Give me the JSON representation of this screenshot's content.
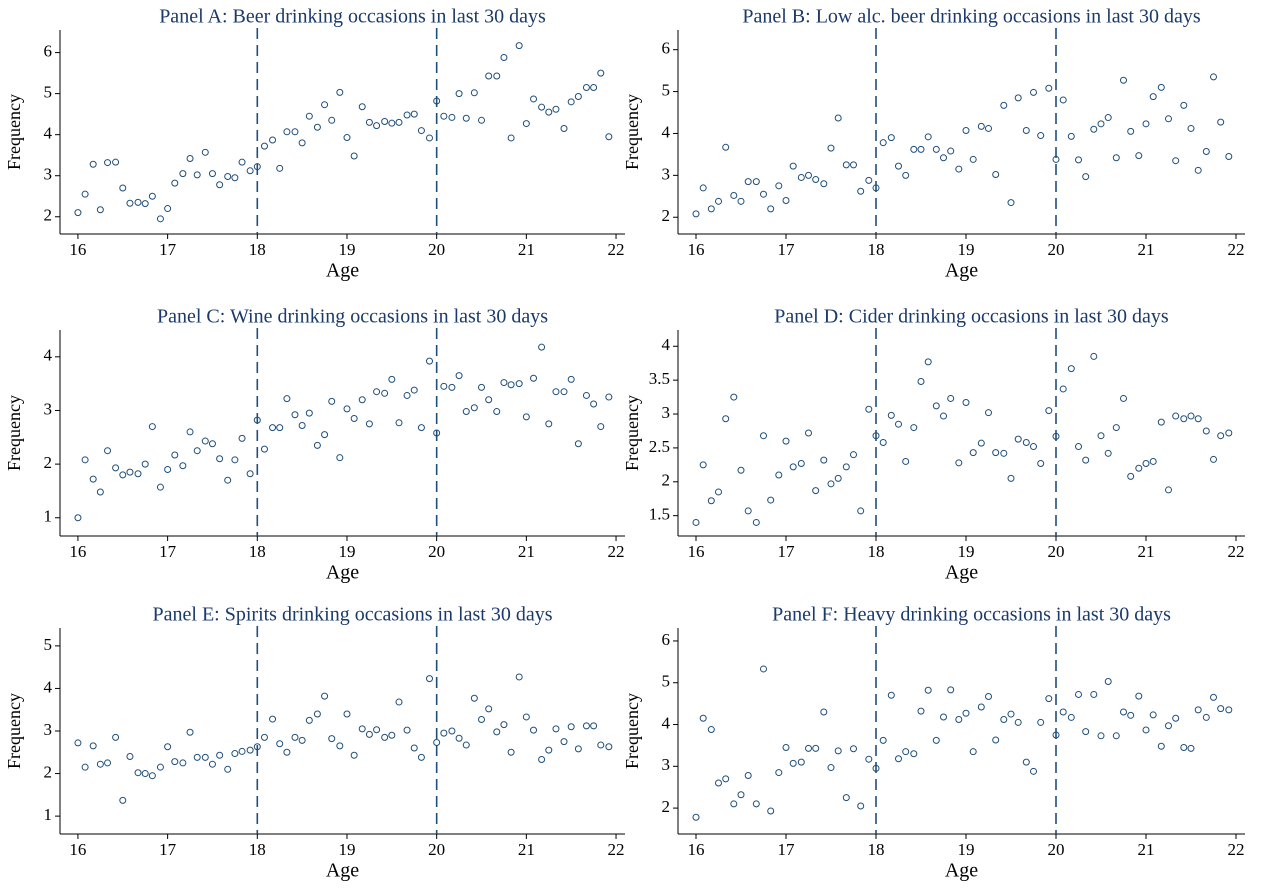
{
  "chart_data": [
    {
      "type": "scatter",
      "title": "Panel A: Beer drinking occasions in last 30 days",
      "x_label": "Age",
      "y_label": "Frequency",
      "color": "#1f4e79",
      "x": [
        16,
        16.08,
        16.17,
        16.25,
        16.33,
        16.42,
        16.5,
        16.58,
        16.67,
        16.75,
        16.83,
        16.92,
        17,
        17.08,
        17.17,
        17.25,
        17.33,
        17.42,
        17.5,
        17.58,
        17.67,
        17.75,
        17.83,
        17.92,
        18,
        18.08,
        18.17,
        18.25,
        18.33,
        18.42,
        18.5,
        18.58,
        18.67,
        18.75,
        18.83,
        18.92,
        19,
        19.08,
        19.17,
        19.25,
        19.33,
        19.42,
        19.5,
        19.58,
        19.67,
        19.75,
        19.83,
        19.92,
        20,
        20.08,
        20.17,
        20.25,
        20.33,
        20.42,
        20.5,
        20.58,
        20.67,
        20.75,
        20.83,
        20.92,
        21,
        21.08,
        21.17,
        21.25,
        21.33,
        21.42,
        21.5,
        21.58,
        21.67,
        21.75,
        21.83,
        21.92
      ],
      "values": [
        2.1,
        2.55,
        3.28,
        2.17,
        3.32,
        3.33,
        2.7,
        2.33,
        2.35,
        2.32,
        2.5,
        1.95,
        2.2,
        2.82,
        3.05,
        3.42,
        3.02,
        3.57,
        3.05,
        2.78,
        2.98,
        2.95,
        3.33,
        3.12,
        3.22,
        3.72,
        3.87,
        3.18,
        4.07,
        4.07,
        3.8,
        4.45,
        4.18,
        4.73,
        4.35,
        5.03,
        3.93,
        3.48,
        4.68,
        4.3,
        4.22,
        4.32,
        4.28,
        4.3,
        4.48,
        4.5,
        4.1,
        3.92,
        4.82,
        4.45,
        4.42,
        5,
        4.4,
        5.02,
        4.35,
        5.43,
        5.43,
        5.88,
        3.92,
        6.17,
        4.27,
        4.87,
        4.67,
        4.55,
        4.62,
        4.15,
        4.8,
        4.93,
        5.15,
        5.15,
        5.5,
        3.95
      ],
      "xlim": [
        15.8,
        22.1
      ],
      "xticks": [
        16,
        17,
        18,
        19,
        20,
        21,
        22
      ],
      "ylim": [
        1.58,
        6.55
      ],
      "yticks": [
        2,
        3,
        4,
        5,
        6
      ],
      "vlines": [
        18,
        20
      ]
    },
    {
      "type": "scatter",
      "title": "Panel B: Low alc. beer drinking occasions in last 30 days",
      "x_label": "Age",
      "y_label": "Frequency",
      "color": "#1f4e79",
      "x": [
        16,
        16.08,
        16.17,
        16.25,
        16.33,
        16.42,
        16.5,
        16.58,
        16.67,
        16.75,
        16.83,
        16.92,
        17,
        17.08,
        17.17,
        17.25,
        17.33,
        17.42,
        17.5,
        17.58,
        17.67,
        17.75,
        17.83,
        17.92,
        18,
        18.08,
        18.17,
        18.25,
        18.33,
        18.42,
        18.5,
        18.58,
        18.67,
        18.75,
        18.83,
        18.92,
        19,
        19.08,
        19.17,
        19.25,
        19.33,
        19.42,
        19.5,
        19.58,
        19.67,
        19.75,
        19.83,
        19.92,
        20,
        20.08,
        20.17,
        20.25,
        20.33,
        20.42,
        20.5,
        20.58,
        20.67,
        20.75,
        20.83,
        20.92,
        21,
        21.08,
        21.17,
        21.25,
        21.33,
        21.42,
        21.5,
        21.58,
        21.67,
        21.75,
        21.83,
        21.92
      ],
      "values": [
        2.08,
        2.7,
        2.2,
        2.38,
        3.67,
        2.52,
        2.38,
        2.85,
        2.85,
        2.55,
        2.2,
        2.75,
        2.4,
        3.22,
        2.95,
        3,
        2.9,
        2.8,
        3.65,
        4.37,
        3.25,
        3.25,
        2.62,
        2.88,
        2.7,
        3.78,
        3.9,
        3.22,
        3,
        3.62,
        3.62,
        3.92,
        3.62,
        3.42,
        3.58,
        3.15,
        4.07,
        3.38,
        4.17,
        4.12,
        3.02,
        4.67,
        2.35,
        4.85,
        4.07,
        4.98,
        3.95,
        5.08,
        3.38,
        4.8,
        3.93,
        3.37,
        2.97,
        4.1,
        4.23,
        4.38,
        3.42,
        5.27,
        4.05,
        3.47,
        4.23,
        4.88,
        5.1,
        4.35,
        3.35,
        4.67,
        4.12,
        3.12,
        3.57,
        5.35,
        4.27,
        3.45
      ],
      "xlim": [
        15.8,
        22.1
      ],
      "xticks": [
        16,
        17,
        18,
        19,
        20,
        21,
        22
      ],
      "ylim": [
        1.6,
        6.47
      ],
      "yticks": [
        2,
        3,
        4,
        5,
        6
      ],
      "vlines": [
        18,
        20
      ]
    },
    {
      "type": "scatter",
      "title": "Panel C: Wine drinking occasions in last 30 days",
      "x_label": "Age",
      "y_label": "Frequency",
      "color": "#1f4e79",
      "x": [
        16,
        16.08,
        16.17,
        16.25,
        16.33,
        16.42,
        16.5,
        16.58,
        16.67,
        16.75,
        16.83,
        16.92,
        17,
        17.08,
        17.17,
        17.25,
        17.33,
        17.42,
        17.5,
        17.58,
        17.67,
        17.75,
        17.83,
        17.92,
        18,
        18.08,
        18.17,
        18.25,
        18.33,
        18.42,
        18.5,
        18.58,
        18.67,
        18.75,
        18.83,
        18.92,
        19,
        19.08,
        19.17,
        19.25,
        19.33,
        19.42,
        19.5,
        19.58,
        19.67,
        19.75,
        19.83,
        19.92,
        20,
        20.08,
        20.17,
        20.25,
        20.33,
        20.42,
        20.5,
        20.58,
        20.67,
        20.75,
        20.83,
        20.92,
        21,
        21.08,
        21.17,
        21.25,
        21.33,
        21.42,
        21.5,
        21.58,
        21.67,
        21.75,
        21.83,
        21.92
      ],
      "values": [
        1,
        2.08,
        1.72,
        1.48,
        2.25,
        1.93,
        1.8,
        1.85,
        1.82,
        2,
        2.7,
        1.57,
        1.9,
        2.17,
        1.97,
        2.6,
        2.25,
        2.43,
        2.38,
        2.1,
        1.7,
        2.08,
        2.48,
        1.82,
        2.82,
        2.28,
        2.68,
        2.68,
        3.22,
        2.92,
        2.72,
        2.95,
        2.35,
        2.55,
        3.17,
        2.12,
        3.03,
        2.85,
        3.2,
        2.75,
        3.35,
        3.32,
        3.58,
        2.77,
        3.28,
        3.38,
        2.68,
        3.92,
        2.58,
        3.45,
        3.43,
        3.65,
        2.98,
        3.05,
        3.43,
        3.2,
        2.98,
        3.52,
        3.48,
        3.5,
        2.88,
        3.6,
        4.18,
        2.75,
        3.35,
        3.35,
        3.58,
        2.38,
        3.28,
        3.12,
        2.7,
        3.25
      ],
      "xlim": [
        15.8,
        22.1
      ],
      "xticks": [
        16,
        17,
        18,
        19,
        20,
        21,
        22
      ],
      "ylim": [
        0.66,
        4.5
      ],
      "yticks": [
        1,
        2,
        3,
        4
      ],
      "vlines": [
        18,
        20
      ]
    },
    {
      "type": "scatter",
      "title": "Panel D: Cider drinking occasions in last 30 days",
      "x_label": "Age",
      "y_label": "Frequency",
      "color": "#1f4e79",
      "x": [
        16,
        16.08,
        16.17,
        16.25,
        16.33,
        16.42,
        16.5,
        16.58,
        16.67,
        16.75,
        16.83,
        16.92,
        17,
        17.08,
        17.17,
        17.25,
        17.33,
        17.42,
        17.5,
        17.58,
        17.67,
        17.75,
        17.83,
        17.92,
        18,
        18.08,
        18.17,
        18.25,
        18.33,
        18.42,
        18.5,
        18.58,
        18.67,
        18.75,
        18.83,
        18.92,
        19,
        19.08,
        19.17,
        19.25,
        19.33,
        19.42,
        19.5,
        19.58,
        19.67,
        19.75,
        19.83,
        19.92,
        20,
        20.08,
        20.17,
        20.25,
        20.33,
        20.42,
        20.5,
        20.58,
        20.67,
        20.75,
        20.83,
        20.92,
        21,
        21.08,
        21.17,
        21.25,
        21.33,
        21.42,
        21.5,
        21.58,
        21.67,
        21.75,
        21.83,
        21.92
      ],
      "values": [
        1.4,
        2.25,
        1.72,
        1.85,
        2.93,
        3.25,
        2.17,
        1.57,
        1.4,
        2.68,
        1.73,
        2.1,
        2.6,
        2.22,
        2.27,
        2.72,
        1.87,
        2.32,
        1.97,
        2.05,
        2.22,
        2.4,
        1.57,
        3.07,
        2.68,
        2.58,
        2.98,
        2.85,
        2.3,
        2.8,
        3.48,
        3.77,
        3.12,
        2.97,
        3.23,
        2.28,
        3.17,
        2.43,
        2.57,
        3.02,
        2.43,
        2.42,
        2.05,
        2.63,
        2.58,
        2.52,
        2.27,
        3.05,
        2.67,
        3.37,
        3.67,
        2.52,
        2.32,
        3.85,
        2.68,
        2.42,
        2.8,
        3.23,
        2.08,
        2.2,
        2.27,
        2.3,
        2.88,
        1.88,
        2.97,
        2.93,
        2.97,
        2.93,
        2.75,
        2.33,
        2.68,
        2.72
      ],
      "xlim": [
        15.8,
        22.1
      ],
      "xticks": [
        16,
        17,
        18,
        19,
        20,
        21,
        22
      ],
      "ylim": [
        1.2,
        4.24
      ],
      "yticks": [
        1.5,
        2,
        2.5,
        3,
        3.5,
        4
      ],
      "vlines": [
        18,
        20
      ]
    },
    {
      "type": "scatter",
      "title": "Panel E: Spirits drinking occasions in last 30 days",
      "x_label": "Age",
      "y_label": "Frequency",
      "color": "#1f4e79",
      "x": [
        16,
        16.08,
        16.17,
        16.25,
        16.33,
        16.42,
        16.5,
        16.58,
        16.67,
        16.75,
        16.83,
        16.92,
        17,
        17.08,
        17.17,
        17.25,
        17.33,
        17.42,
        17.5,
        17.58,
        17.67,
        17.75,
        17.83,
        17.92,
        18,
        18.08,
        18.17,
        18.25,
        18.33,
        18.42,
        18.5,
        18.58,
        18.67,
        18.75,
        18.83,
        18.92,
        19,
        19.08,
        19.17,
        19.25,
        19.33,
        19.42,
        19.5,
        19.58,
        19.67,
        19.75,
        19.83,
        19.92,
        20,
        20.08,
        20.17,
        20.25,
        20.33,
        20.42,
        20.5,
        20.58,
        20.67,
        20.75,
        20.83,
        20.92,
        21,
        21.08,
        21.17,
        21.25,
        21.33,
        21.42,
        21.5,
        21.58,
        21.67,
        21.75,
        21.83,
        21.92
      ],
      "values": [
        2.72,
        2.15,
        2.65,
        2.22,
        2.25,
        2.85,
        1.37,
        2.4,
        2.02,
        2,
        1.95,
        2.15,
        2.63,
        2.28,
        2.25,
        2.97,
        2.38,
        2.38,
        2.22,
        2.43,
        2.1,
        2.47,
        2.52,
        2.55,
        2.63,
        2.85,
        3.28,
        2.7,
        2.5,
        2.85,
        2.78,
        3.25,
        3.4,
        3.82,
        2.82,
        2.65,
        3.4,
        2.43,
        3.05,
        2.92,
        3.03,
        2.85,
        2.9,
        3.68,
        3.02,
        2.6,
        2.38,
        4.23,
        2.73,
        2.95,
        3,
        2.83,
        2.67,
        3.77,
        3.27,
        3.52,
        2.98,
        3.15,
        2.5,
        4.27,
        3.33,
        3.02,
        2.33,
        2.55,
        3.05,
        2.75,
        3.1,
        2.58,
        3.12,
        3.12,
        2.67,
        2.63
      ],
      "xlim": [
        15.8,
        22.1
      ],
      "xticks": [
        16,
        17,
        18,
        19,
        20,
        21,
        22
      ],
      "ylim": [
        0.58,
        5.42
      ],
      "yticks": [
        1,
        2,
        3,
        4,
        5
      ],
      "vlines": [
        18,
        20
      ]
    },
    {
      "type": "scatter",
      "title": "Panel F: Heavy drinking occasions in last 30 days",
      "x_label": "Age",
      "y_label": "Frequency",
      "color": "#1f4e79",
      "x": [
        16,
        16.08,
        16.17,
        16.25,
        16.33,
        16.42,
        16.5,
        16.58,
        16.67,
        16.75,
        16.83,
        16.92,
        17,
        17.08,
        17.17,
        17.25,
        17.33,
        17.42,
        17.5,
        17.58,
        17.67,
        17.75,
        17.83,
        17.92,
        18,
        18.08,
        18.17,
        18.25,
        18.33,
        18.42,
        18.5,
        18.58,
        18.67,
        18.75,
        18.83,
        18.92,
        19,
        19.08,
        19.17,
        19.25,
        19.33,
        19.42,
        19.5,
        19.58,
        19.67,
        19.75,
        19.83,
        19.92,
        20,
        20.08,
        20.17,
        20.25,
        20.33,
        20.42,
        20.5,
        20.58,
        20.67,
        20.75,
        20.83,
        20.92,
        21,
        21.08,
        21.17,
        21.25,
        21.33,
        21.42,
        21.5,
        21.58,
        21.67,
        21.75,
        21.83,
        21.92
      ],
      "values": [
        1.78,
        4.15,
        3.88,
        2.6,
        2.7,
        2.1,
        2.32,
        2.78,
        2.1,
        5.33,
        1.93,
        2.85,
        3.45,
        3.07,
        3.1,
        3.43,
        3.43,
        4.3,
        2.97,
        3.37,
        2.25,
        3.42,
        2.05,
        3.17,
        2.95,
        3.62,
        4.7,
        3.18,
        3.35,
        3.3,
        4.32,
        4.82,
        3.62,
        4.18,
        4.83,
        4.12,
        4.27,
        3.35,
        4.42,
        4.67,
        3.63,
        4.12,
        4.25,
        4.05,
        3.1,
        2.88,
        4.05,
        4.62,
        3.75,
        4.3,
        4.17,
        4.72,
        3.83,
        4.72,
        3.73,
        5.03,
        3.73,
        4.3,
        4.22,
        4.68,
        3.87,
        4.23,
        3.48,
        3.97,
        4.15,
        3.45,
        3.43,
        4.35,
        4.17,
        4.65,
        4.38,
        4.35
      ],
      "xlim": [
        15.8,
        22.1
      ],
      "xticks": [
        16,
        17,
        18,
        19,
        20,
        21,
        22
      ],
      "ylim": [
        1.38,
        6.31
      ],
      "yticks": [
        2,
        3,
        4,
        5,
        6
      ],
      "vlines": [
        18,
        20
      ]
    }
  ]
}
